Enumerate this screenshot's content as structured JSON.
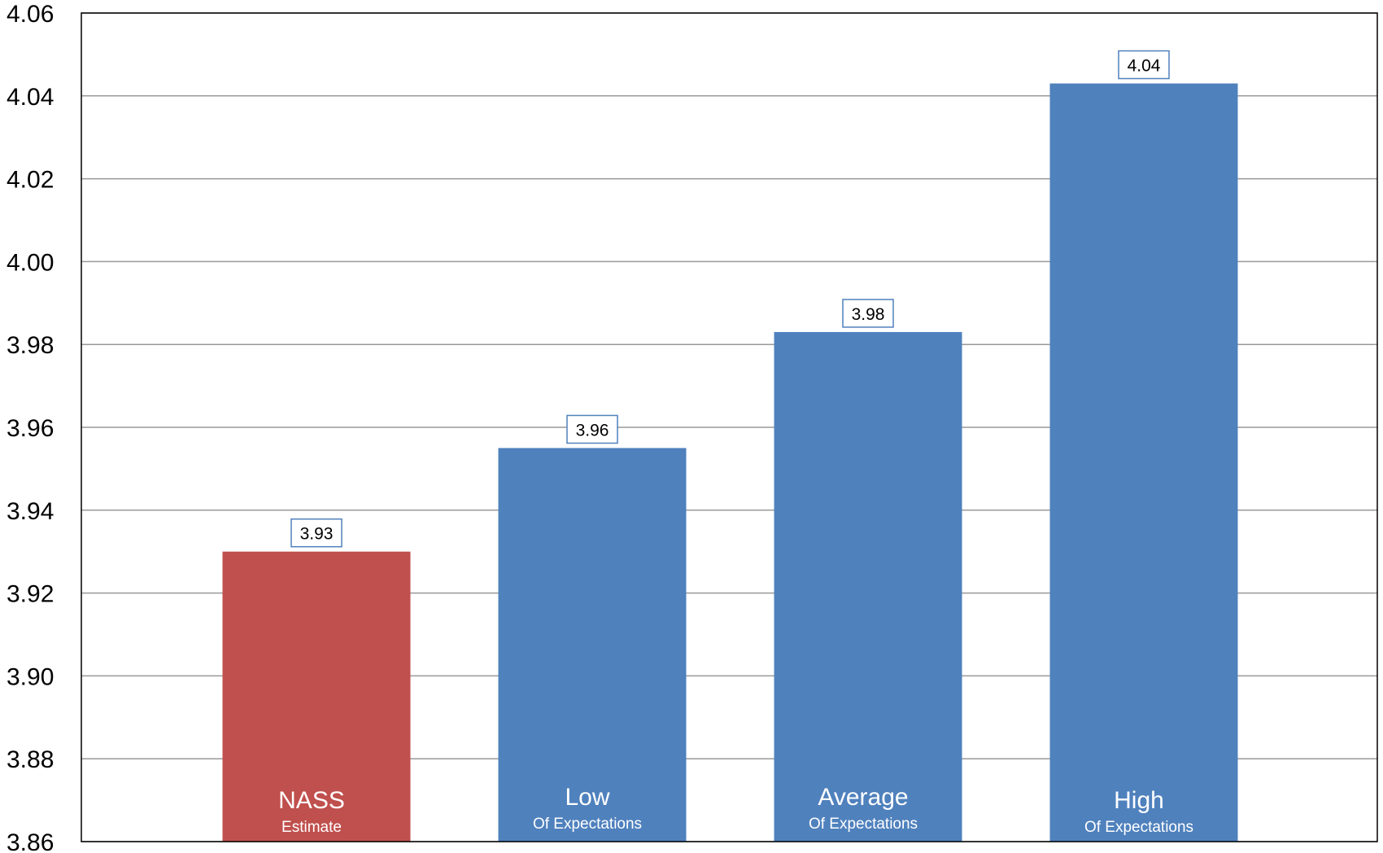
{
  "chart_data": {
    "type": "bar",
    "title": "",
    "xlabel": "",
    "ylabel": "",
    "ylim": [
      3.86,
      4.06
    ],
    "yticks": [
      "3.86",
      "3.88",
      "3.90",
      "3.92",
      "3.94",
      "3.96",
      "3.98",
      "4.00",
      "4.02",
      "4.04",
      "4.06"
    ],
    "grid": true,
    "legend": "none",
    "categories": [
      {
        "main": "NASS",
        "sub": "Estimate"
      },
      {
        "main": "Low",
        "sub": "Of Expectations"
      },
      {
        "main": "Average",
        "sub": "Of Expectations"
      },
      {
        "main": "High",
        "sub": "Of Expectations"
      }
    ],
    "values": [
      3.93,
      3.955,
      3.983,
      4.043
    ],
    "value_labels": [
      "3.93",
      "3.96",
      "3.98",
      "4.04"
    ],
    "colors": [
      "#c0504d",
      "#4f81bd",
      "#4f81bd",
      "#4f81bd"
    ],
    "label_border_color": "#4f81bd",
    "grid_color": "#999999"
  }
}
